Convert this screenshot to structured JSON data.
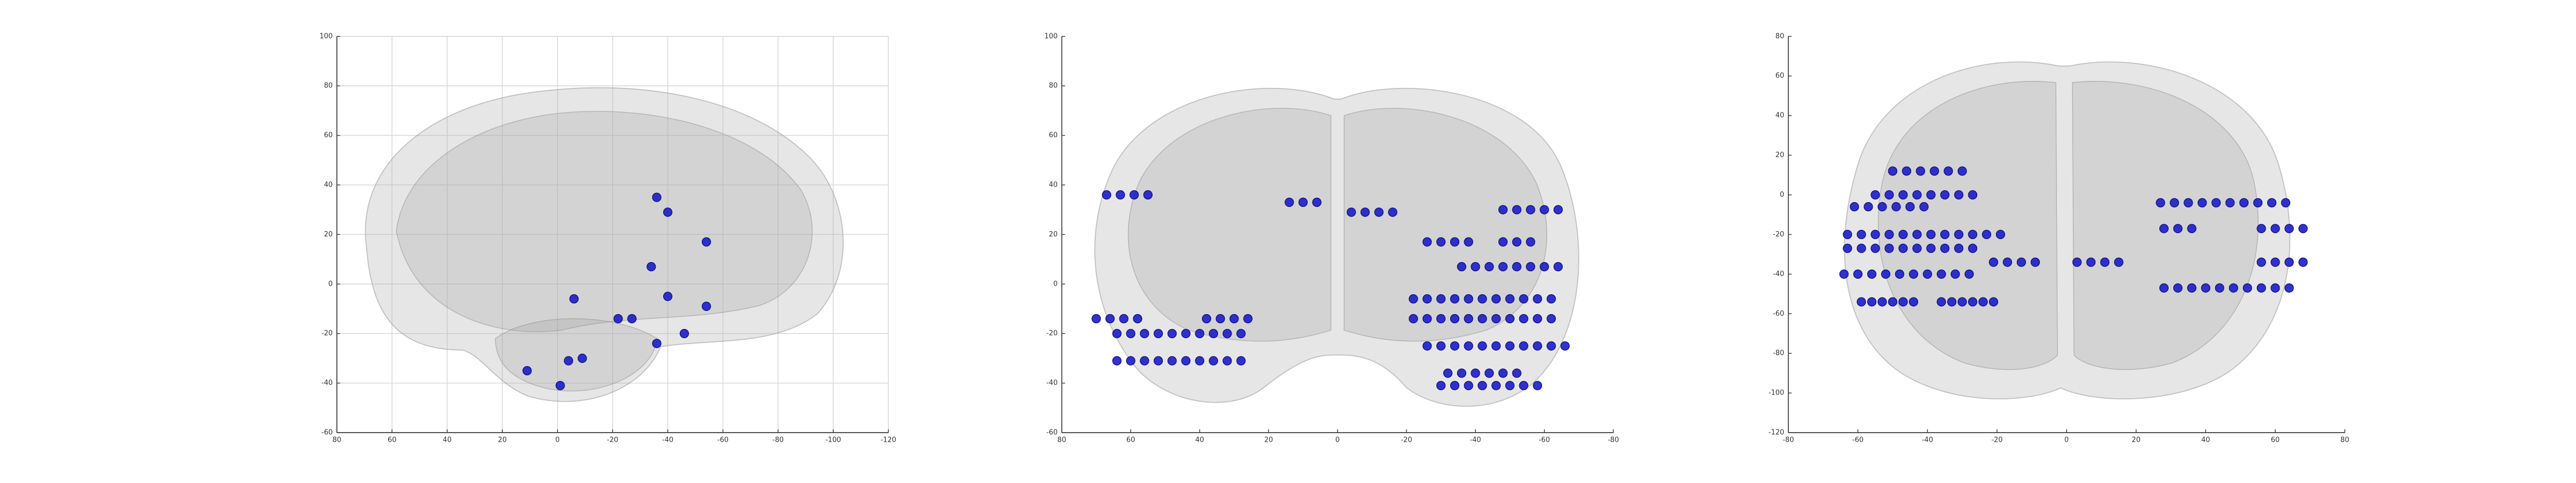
{
  "chart_data": [
    {
      "type": "scatter",
      "color": "#1c1cc8",
      "grid": true,
      "xlim": [
        80,
        -120
      ],
      "ylim": [
        -60,
        100
      ],
      "xticks": [
        80,
        60,
        40,
        20,
        0,
        -20,
        -40,
        -60,
        -80,
        -100,
        -120
      ],
      "yticks": [
        -60,
        -40,
        -20,
        0,
        20,
        40,
        60,
        80,
        100
      ],
      "x": [
        -36,
        -40,
        -54,
        -34,
        -6,
        -40,
        -54,
        -22,
        -27,
        -46,
        -36,
        -4,
        -9,
        11,
        -1
      ],
      "values": [
        35,
        29,
        17,
        7,
        -6,
        -5,
        -9,
        -14,
        -14,
        -20,
        -24,
        -31,
        -30,
        -35,
        -41
      ]
    },
    {
      "type": "scatter",
      "color": "#1c1cc8",
      "grid": false,
      "xlim": [
        80,
        -80
      ],
      "ylim": [
        -60,
        100
      ],
      "xticks": [
        80,
        60,
        40,
        20,
        0,
        -20,
        -40,
        -60,
        -80
      ],
      "yticks": [
        -60,
        -40,
        -20,
        0,
        20,
        40,
        60,
        80,
        100
      ],
      "x": [
        67,
        63,
        59,
        55,
        14,
        10,
        6,
        -4,
        -8,
        -12,
        -16,
        -48,
        -52,
        -56,
        -60,
        -64,
        -26,
        -30,
        -34,
        -38,
        -48,
        -52,
        -56,
        -36,
        -40,
        -44,
        -48,
        -52,
        -56,
        -60,
        -64,
        -22,
        -26,
        -30,
        -34,
        -38,
        -42,
        -46,
        -50,
        -54,
        -58,
        -62,
        70,
        66,
        62,
        58,
        38,
        34,
        30,
        26,
        -22,
        -26,
        -30,
        -34,
        -38,
        -42,
        -46,
        -50,
        -54,
        -58,
        -62,
        64,
        60,
        56,
        52,
        48,
        44,
        40,
        36,
        32,
        28,
        -26,
        -30,
        -34,
        -38,
        -42,
        -46,
        -50,
        -54,
        -58,
        -62,
        -66,
        64,
        60,
        56,
        52,
        48,
        44,
        40,
        36,
        32,
        28,
        -32,
        -36,
        -40,
        -44,
        -48,
        -52,
        -30,
        -34,
        -38,
        -42,
        -46,
        -50,
        -54,
        -58
      ],
      "values": [
        36,
        36,
        36,
        36,
        33,
        33,
        33,
        29,
        29,
        29,
        29,
        30,
        30,
        30,
        30,
        30,
        17,
        17,
        17,
        17,
        17,
        17,
        17,
        7,
        7,
        7,
        7,
        7,
        7,
        7,
        7,
        -6,
        -6,
        -6,
        -6,
        -6,
        -6,
        -6,
        -6,
        -6,
        -6,
        -6,
        -14,
        -14,
        -14,
        -14,
        -14,
        -14,
        -14,
        -14,
        -14,
        -14,
        -14,
        -14,
        -14,
        -14,
        -14,
        -14,
        -14,
        -14,
        -14,
        -20,
        -20,
        -20,
        -20,
        -20,
        -20,
        -20,
        -20,
        -20,
        -20,
        -25,
        -25,
        -25,
        -25,
        -25,
        -25,
        -25,
        -25,
        -25,
        -25,
        -25,
        -31,
        -31,
        -31,
        -31,
        -31,
        -31,
        -31,
        -31,
        -31,
        -31,
        -36,
        -36,
        -36,
        -36,
        -36,
        -36,
        -41,
        -41,
        -41,
        -41,
        -41,
        -41,
        -41,
        -41
      ]
    },
    {
      "type": "scatter",
      "color": "#1c1cc8",
      "grid": false,
      "xlim": [
        -80,
        80
      ],
      "ylim": [
        -120,
        80
      ],
      "xticks": [
        -80,
        -60,
        -40,
        -20,
        0,
        20,
        40,
        60,
        80
      ],
      "yticks": [
        -120,
        -100,
        -80,
        -60,
        -40,
        -20,
        0,
        20,
        40,
        60,
        80
      ],
      "x": [
        -50,
        -46,
        -42,
        -38,
        -34,
        -30,
        -55,
        -51,
        -47,
        -43,
        -39,
        -35,
        -31,
        -27,
        -61,
        -57,
        -53,
        -49,
        -45,
        -41,
        27,
        31,
        35,
        39,
        43,
        47,
        51,
        55,
        59,
        63,
        28,
        32,
        36,
        56,
        60,
        64,
        68,
        -63,
        -59,
        -55,
        -51,
        -47,
        -43,
        -39,
        -35,
        -31,
        -27,
        -23,
        -19,
        -63,
        -59,
        -55,
        -51,
        -47,
        -43,
        -39,
        -35,
        -31,
        -27,
        -21,
        -17,
        -13,
        -9,
        3,
        7,
        11,
        15,
        56,
        60,
        64,
        68,
        -64,
        -60,
        -56,
        -52,
        -48,
        -44,
        -40,
        -36,
        -32,
        -28,
        28,
        32,
        36,
        40,
        44,
        48,
        52,
        56,
        60,
        64,
        -59,
        -56,
        -53,
        -50,
        -47,
        -44,
        -36,
        -33,
        -30,
        -27,
        -24,
        -21
      ],
      "values": [
        12,
        12,
        12,
        12,
        12,
        12,
        0,
        0,
        0,
        0,
        0,
        0,
        0,
        0,
        -6,
        -6,
        -6,
        -6,
        -6,
        -6,
        -4,
        -4,
        -4,
        -4,
        -4,
        -4,
        -4,
        -4,
        -4,
        -4,
        -17,
        -17,
        -17,
        -17,
        -17,
        -17,
        -17,
        -20,
        -20,
        -20,
        -20,
        -20,
        -20,
        -20,
        -20,
        -20,
        -20,
        -20,
        -20,
        -27,
        -27,
        -27,
        -27,
        -27,
        -27,
        -27,
        -27,
        -27,
        -27,
        -34,
        -34,
        -34,
        -34,
        -34,
        -34,
        -34,
        -34,
        -34,
        -34,
        -34,
        -34,
        -40,
        -40,
        -40,
        -40,
        -40,
        -40,
        -40,
        -40,
        -40,
        -40,
        -47,
        -47,
        -47,
        -47,
        -47,
        -47,
        -47,
        -47,
        -47,
        -47,
        -54,
        -54,
        -54,
        -54,
        -54,
        -54,
        -54,
        -54,
        -54,
        -54,
        -54,
        -54
      ]
    }
  ]
}
